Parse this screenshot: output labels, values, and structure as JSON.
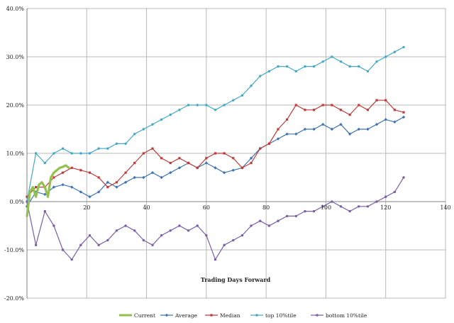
{
  "chart_data": {
    "type": "line",
    "xlabel": "Trading Days Forward",
    "ylabel": "",
    "xlim": [
      0,
      140
    ],
    "ylim": [
      -0.2,
      0.4
    ],
    "x_ticks": [
      0,
      20,
      40,
      60,
      80,
      100,
      120,
      140
    ],
    "x_tick_labels": [
      "0",
      "20",
      "40",
      "60",
      "80",
      "100",
      "120",
      "140"
    ],
    "y_ticks": [
      -0.2,
      -0.1,
      0.0,
      0.1,
      0.2,
      0.3,
      0.4
    ],
    "y_tick_labels": [
      "-20.0%",
      "-10.0%",
      "0.0%",
      "10.0%",
      "20.0%",
      "30.0%",
      "40.0%"
    ],
    "grid": true,
    "legend_position": "bottom",
    "series": [
      {
        "name": "Current",
        "color": "#92c14e",
        "marker": "none",
        "x": [
          0,
          1,
          2,
          3,
          4,
          5,
          6,
          7,
          8,
          9,
          10,
          11,
          12,
          13,
          14
        ],
        "y": [
          -0.03,
          0.02,
          0.03,
          0.01,
          0.035,
          0.04,
          0.03,
          0.01,
          0.05,
          0.06,
          0.065,
          0.07,
          0.072,
          0.075,
          0.07
        ]
      },
      {
        "name": "Average",
        "color": "#3f73b8",
        "marker": "diamond",
        "x": [
          0,
          3,
          6,
          9,
          12,
          15,
          18,
          21,
          24,
          27,
          30,
          33,
          36,
          39,
          42,
          45,
          48,
          51,
          54,
          57,
          60,
          63,
          66,
          69,
          72,
          75,
          78,
          81,
          84,
          87,
          90,
          93,
          96,
          99,
          102,
          105,
          108,
          111,
          114,
          117,
          120,
          123,
          126
        ],
        "y": [
          -0.01,
          0.02,
          0.015,
          0.03,
          0.035,
          0.03,
          0.02,
          0.01,
          0.02,
          0.04,
          0.03,
          0.04,
          0.05,
          0.05,
          0.06,
          0.05,
          0.06,
          0.07,
          0.08,
          0.07,
          0.08,
          0.07,
          0.06,
          0.065,
          0.07,
          0.09,
          0.11,
          0.12,
          0.13,
          0.14,
          0.14,
          0.15,
          0.15,
          0.16,
          0.15,
          0.16,
          0.14,
          0.15,
          0.15,
          0.16,
          0.17,
          0.165,
          0.175
        ]
      },
      {
        "name": "Median",
        "color": "#c23b3b",
        "marker": "square",
        "x": [
          0,
          3,
          6,
          9,
          12,
          15,
          18,
          21,
          24,
          27,
          30,
          33,
          36,
          39,
          42,
          45,
          48,
          51,
          54,
          57,
          60,
          63,
          66,
          69,
          72,
          75,
          78,
          81,
          84,
          87,
          90,
          93,
          96,
          99,
          102,
          105,
          108,
          111,
          114,
          117,
          120,
          123,
          126
        ],
        "y": [
          0.01,
          0.03,
          0.03,
          0.05,
          0.06,
          0.07,
          0.065,
          0.06,
          0.05,
          0.03,
          0.04,
          0.06,
          0.08,
          0.1,
          0.11,
          0.09,
          0.08,
          0.09,
          0.08,
          0.07,
          0.09,
          0.1,
          0.1,
          0.09,
          0.07,
          0.08,
          0.11,
          0.12,
          0.15,
          0.17,
          0.2,
          0.19,
          0.19,
          0.2,
          0.2,
          0.19,
          0.18,
          0.2,
          0.19,
          0.21,
          0.21,
          0.19,
          0.185
        ]
      },
      {
        "name": "top 10%tile",
        "color": "#43a9c9",
        "marker": "circle",
        "x": [
          0,
          3,
          6,
          9,
          12,
          15,
          18,
          21,
          24,
          27,
          30,
          33,
          36,
          39,
          42,
          45,
          48,
          51,
          54,
          57,
          60,
          63,
          66,
          69,
          72,
          75,
          78,
          81,
          84,
          87,
          90,
          93,
          96,
          99,
          102,
          105,
          108,
          111,
          114,
          117,
          120,
          123,
          126
        ],
        "y": [
          0.0,
          0.1,
          0.08,
          0.1,
          0.11,
          0.1,
          0.1,
          0.1,
          0.11,
          0.11,
          0.12,
          0.12,
          0.14,
          0.15,
          0.16,
          0.17,
          0.18,
          0.19,
          0.2,
          0.2,
          0.2,
          0.19,
          0.2,
          0.21,
          0.22,
          0.24,
          0.26,
          0.27,
          0.28,
          0.28,
          0.27,
          0.28,
          0.28,
          0.29,
          0.3,
          0.29,
          0.28,
          0.28,
          0.27,
          0.29,
          0.3,
          0.31,
          0.32
        ]
      },
      {
        "name": "bottom 10%tile",
        "color": "#7b5ea7",
        "marker": "circle",
        "x": [
          0,
          3,
          6,
          9,
          12,
          15,
          18,
          21,
          24,
          27,
          30,
          33,
          36,
          39,
          42,
          45,
          48,
          51,
          54,
          57,
          60,
          63,
          66,
          69,
          72,
          75,
          78,
          81,
          84,
          87,
          90,
          93,
          96,
          99,
          102,
          105,
          108,
          111,
          114,
          117,
          120,
          123,
          126
        ],
        "y": [
          0.0,
          -0.09,
          -0.02,
          -0.05,
          -0.1,
          -0.12,
          -0.09,
          -0.07,
          -0.09,
          -0.08,
          -0.06,
          -0.05,
          -0.06,
          -0.08,
          -0.09,
          -0.07,
          -0.06,
          -0.05,
          -0.06,
          -0.05,
          -0.07,
          -0.12,
          -0.09,
          -0.08,
          -0.07,
          -0.05,
          -0.04,
          -0.05,
          -0.04,
          -0.03,
          -0.03,
          -0.02,
          -0.02,
          -0.01,
          0.0,
          -0.01,
          -0.02,
          -0.01,
          -0.01,
          0.0,
          0.01,
          0.02,
          0.05
        ]
      }
    ]
  }
}
